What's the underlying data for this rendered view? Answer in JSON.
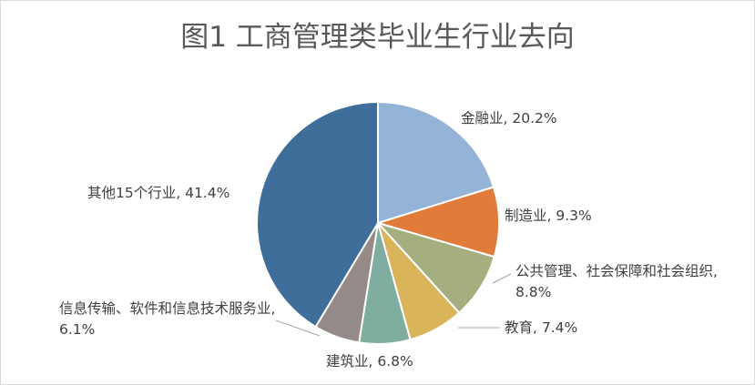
{
  "chart_data": {
    "type": "pie",
    "title": "图1 工商管理类毕业生行业去向",
    "legend": "none",
    "slices": [
      {
        "name": "金融业",
        "value": 20.2,
        "label": "金融业, 20.2%",
        "color": "#95b3d7"
      },
      {
        "name": "制造业",
        "value": 9.3,
        "label": "制造业, 9.3%",
        "color": "#e07b39"
      },
      {
        "name": "公共管理、社会保障和社会组织",
        "value": 8.8,
        "label": "公共管理、社会保障和社会组织, 8.8%",
        "color": "#a5ae7f"
      },
      {
        "name": "教育",
        "value": 7.4,
        "label": "教育, 7.4%",
        "color": "#d9b45a"
      },
      {
        "name": "建筑业",
        "value": 6.8,
        "label": "建筑业, 6.8%",
        "color": "#7fada0"
      },
      {
        "name": "信息传输、软件和信息技术服务业",
        "value": 6.1,
        "label": "信息传输、软件和信息技术服务业, 6.1%",
        "color": "#948a87"
      },
      {
        "name": "其他15个行业",
        "value": 41.4,
        "label": "其他15个行业, 41.4%",
        "color": "#3f6e9a"
      }
    ]
  }
}
